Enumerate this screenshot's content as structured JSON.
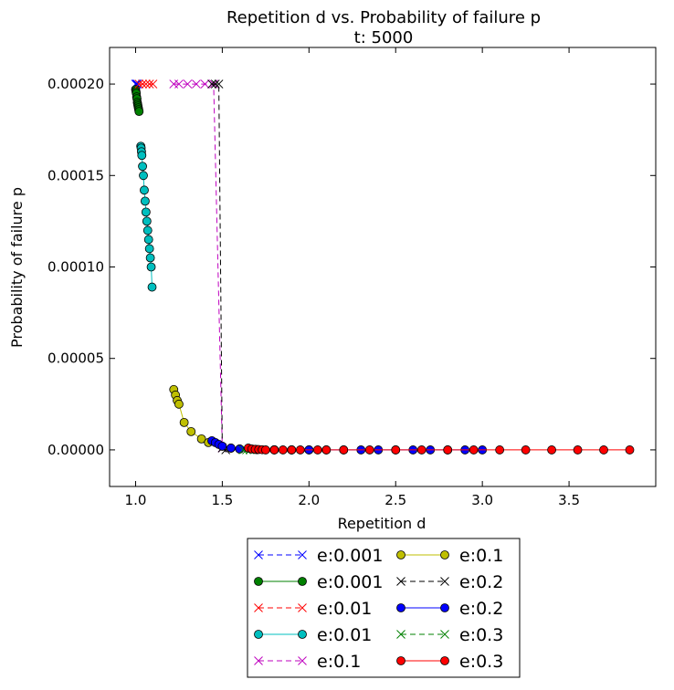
{
  "chart_data": {
    "type": "line",
    "title": "Repetition d vs. Probability of failure p",
    "subtitle": "t: 5000",
    "xlabel": "Repetition d",
    "ylabel": "Probability of failure p",
    "xlim": [
      0.85,
      4.0
    ],
    "ylim": [
      -2e-05,
      0.00022
    ],
    "xticks": [
      1.0,
      1.5,
      2.0,
      2.5,
      3.0,
      3.5
    ],
    "xtick_labels": [
      "1.0",
      "1.5",
      "2.0",
      "2.5",
      "3.0",
      "3.5"
    ],
    "yticks": [
      0,
      5e-05,
      0.0001,
      0.00015,
      0.0002
    ],
    "ytick_labels": [
      "0.00000",
      "0.00005",
      "0.00010",
      "0.00015",
      "0.00020"
    ],
    "legend_position": "below plot",
    "legend_columns": 2,
    "series": [
      {
        "name": "e:0.001",
        "color": "#0000ff",
        "marker": "x",
        "linestyle": "dashed",
        "x": [
          1.0,
          1.005,
          1.01
        ],
        "y": [
          0.0002,
          0.0002,
          0.0002
        ]
      },
      {
        "name": "e:0.001",
        "color": "#008000",
        "marker": "o",
        "linestyle": "solid",
        "x": [
          1.0,
          1.002,
          1.004,
          1.006,
          1.008,
          1.01,
          1.012,
          1.014,
          1.016,
          1.018,
          1.02
        ],
        "y": [
          0.000197,
          0.000196,
          0.000195,
          0.000193,
          0.000192,
          0.00019,
          0.000189,
          0.000188,
          0.000187,
          0.000186,
          0.000185
        ]
      },
      {
        "name": "e:0.01",
        "color": "#ff0000",
        "marker": "x",
        "linestyle": "dashed",
        "x": [
          1.02,
          1.04,
          1.06,
          1.08,
          1.1
        ],
        "y": [
          0.0002,
          0.0002,
          0.0002,
          0.0002,
          0.0002
        ]
      },
      {
        "name": "e:0.01",
        "color": "#00bfbf",
        "marker": "o",
        "linestyle": "solid",
        "x": [
          1.03,
          1.032,
          1.034,
          1.036,
          1.04,
          1.045,
          1.05,
          1.055,
          1.06,
          1.065,
          1.07,
          1.075,
          1.08,
          1.085,
          1.09,
          1.095
        ],
        "y": [
          0.000166,
          0.000165,
          0.000163,
          0.000161,
          0.000155,
          0.00015,
          0.000142,
          0.000136,
          0.00013,
          0.000125,
          0.00012,
          0.000115,
          0.00011,
          0.000105,
          0.0001,
          8.9e-05
        ]
      },
      {
        "name": "e:0.1",
        "color": "#bf00bf",
        "marker": "x",
        "linestyle": "dashed",
        "x": [
          1.22,
          1.25,
          1.3,
          1.35,
          1.4,
          1.45,
          1.5
        ],
        "y": [
          0.0002,
          0.0002,
          0.0002,
          0.0002,
          0.0002,
          0.0002,
          1e-06
        ]
      },
      {
        "name": "e:0.1",
        "color": "#bfbf00",
        "marker": "o",
        "linestyle": "solid",
        "x": [
          1.22,
          1.23,
          1.24,
          1.25,
          1.28,
          1.32,
          1.38,
          1.42,
          1.5,
          1.55,
          1.6,
          1.7,
          1.8,
          1.9,
          2.0
        ],
        "y": [
          3.3e-05,
          3e-05,
          2.7e-05,
          2.5e-05,
          1.5e-05,
          1e-05,
          6e-06,
          4e-06,
          2e-06,
          1e-06,
          5e-07,
          2e-07,
          1e-07,
          0.0,
          0.0
        ]
      },
      {
        "name": "e:0.2",
        "color": "#000000",
        "marker": "x",
        "linestyle": "dashed",
        "x": [
          1.44,
          1.46,
          1.48,
          1.5,
          1.52
        ],
        "y": [
          0.0002,
          0.0002,
          0.0002,
          1e-06,
          0.0
        ]
      },
      {
        "name": "e:0.2",
        "color": "#0000ff",
        "marker": "o",
        "linestyle": "solid",
        "x": [
          1.44,
          1.46,
          1.48,
          1.5,
          1.55,
          1.6,
          1.7,
          1.8,
          1.9,
          2.0,
          2.1,
          2.2,
          2.3,
          2.4,
          2.5,
          2.6,
          2.7,
          2.8,
          2.9,
          3.0
        ],
        "y": [
          5e-06,
          4e-06,
          3e-06,
          2e-06,
          1e-06,
          5e-07,
          1e-07,
          0.0,
          0.0,
          0.0,
          0.0,
          0.0,
          0.0,
          0.0,
          0.0,
          0.0,
          0.0,
          0.0,
          0.0,
          0.0
        ]
      },
      {
        "name": "e:0.3",
        "color": "#008000",
        "marker": "x",
        "linestyle": "dashed",
        "x": [
          1.62,
          1.64,
          1.66
        ],
        "y": [
          0.0,
          0.0,
          0.0
        ]
      },
      {
        "name": "e:0.3",
        "color": "#ff0000",
        "marker": "o",
        "linestyle": "solid",
        "x": [
          1.65,
          1.67,
          1.69,
          1.71,
          1.73,
          1.75,
          1.8,
          1.85,
          1.9,
          1.95,
          2.05,
          2.1,
          2.2,
          2.35,
          2.5,
          2.65,
          2.8,
          2.95,
          3.1,
          3.25,
          3.4,
          3.55,
          3.7,
          3.85
        ],
        "y": [
          1e-06,
          5e-07,
          3e-07,
          2e-07,
          1e-07,
          0.0,
          0.0,
          0.0,
          0.0,
          0.0,
          0.0,
          0.0,
          0.0,
          0.0,
          0.0,
          0.0,
          0.0,
          0.0,
          0.0,
          0.0,
          0.0,
          0.0,
          0.0,
          0.0
        ]
      }
    ]
  }
}
